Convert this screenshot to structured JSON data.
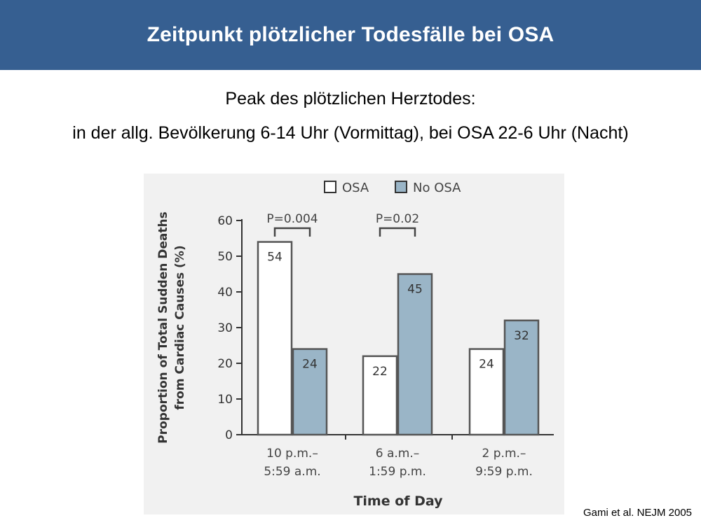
{
  "slide": {
    "title": "Zeitpunkt plötzlicher Todesfälle bei OSA",
    "line1": "Peak des plötzlichen Herztodes:",
    "line2": "in der allg. Bevölkerung 6-14 Uhr (Vormittag), bei OSA 22-6 Uhr (Nacht)",
    "citation": "Gami et al. NEJM 2005"
  },
  "colors": {
    "header_bg": "#365f91",
    "osa_fill": "#ffffff",
    "no_osa_fill": "#9ab5c7",
    "bar_stroke": "#555555",
    "figure_bg": "#f1f1f1"
  },
  "chart_data": {
    "type": "bar",
    "title": "",
    "xlabel": "Time of Day",
    "ylabel": "Proportion of Total Sudden Deaths from Cardiac Causes (%)",
    "ylabel_lines": [
      "Proportion of Total Sudden Deaths",
      "from Cardiac Causes (%)"
    ],
    "ylim": [
      0,
      60
    ],
    "yticks": [
      0,
      10,
      20,
      30,
      40,
      50,
      60
    ],
    "categories": [
      [
        "10 p.m.–",
        "5:59 a.m."
      ],
      [
        "6 a.m.–",
        "1:59 p.m."
      ],
      [
        "2 p.m.–",
        "9:59 p.m."
      ]
    ],
    "series": [
      {
        "name": "OSA",
        "values": [
          54,
          22,
          24
        ]
      },
      {
        "name": "No OSA",
        "values": [
          24,
          45,
          32
        ]
      }
    ],
    "annotations": [
      {
        "category_index": 0,
        "text": "P=0.004"
      },
      {
        "category_index": 1,
        "text": "P=0.02"
      }
    ],
    "legend": "top-center",
    "grid": false
  }
}
